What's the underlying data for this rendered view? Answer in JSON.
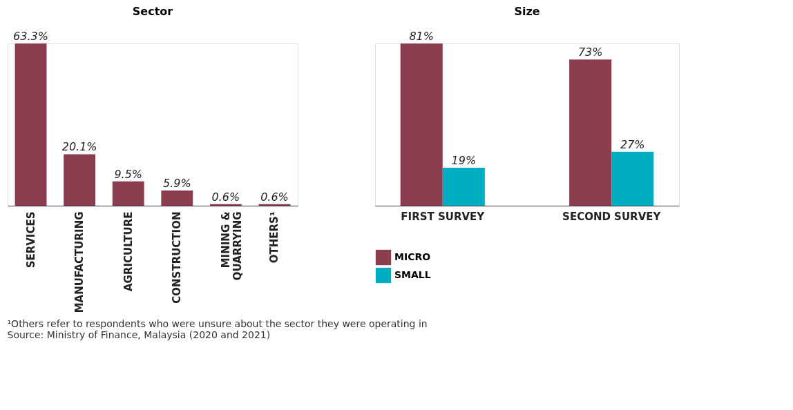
{
  "chart_data": [
    {
      "type": "bar",
      "title": "Sector",
      "categories": [
        "SERVICES",
        "MANUFACTURING",
        "AGRICULTURE",
        "CONSTRUCTION",
        "MINING &\nQUARRYING",
        "OTHERS¹"
      ],
      "values": [
        63.3,
        20.1,
        9.5,
        5.9,
        0.6,
        0.6
      ],
      "color": "#8b3c4e",
      "value_labels": [
        "63.3%",
        "20.1%",
        "9.5%",
        "5.9%",
        "0.6%",
        "0.6%"
      ],
      "tick_labels": "x",
      "grid": false,
      "annotations": [
        "¹Others refer to respondents who were unsure about the sector they were operating in",
        "Source: Ministry of Finance, Malaysia (2020 and 2021)"
      ]
    },
    {
      "type": "bar",
      "title": "Size",
      "categories": [
        "FIRST SURVEY",
        "SECOND SURVEY"
      ],
      "series": [
        {
          "name": "MICRO",
          "color": "#8b3c4e",
          "values": [
            81,
            73
          ],
          "value_labels": [
            "81%",
            "73%"
          ]
        },
        {
          "name": "SMALL",
          "color": "#00aec3",
          "values": [
            19,
            27
          ],
          "value_labels": [
            "19%",
            "27%"
          ]
        }
      ],
      "tick_labels": "x",
      "grid": false,
      "legend": "bottom"
    }
  ]
}
